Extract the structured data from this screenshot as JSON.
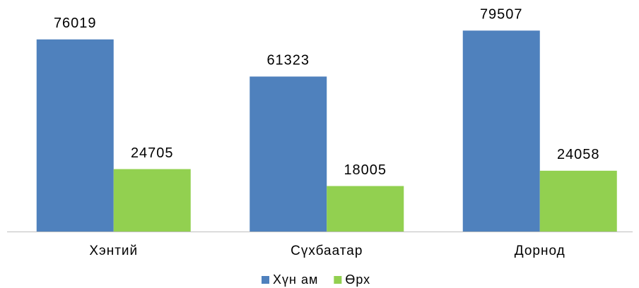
{
  "chart_data": {
    "type": "bar",
    "categories": [
      "Хэнтий",
      "Сүхбаатар",
      "Дорнод"
    ],
    "series": [
      {
        "name": "Хүн ам",
        "color": "#4f81bd",
        "values": [
          76019,
          61323,
          79507
        ]
      },
      {
        "name": "Өрх",
        "color": "#92d050",
        "values": [
          24705,
          18005,
          24058
        ]
      }
    ],
    "legend": "bottom"
  }
}
